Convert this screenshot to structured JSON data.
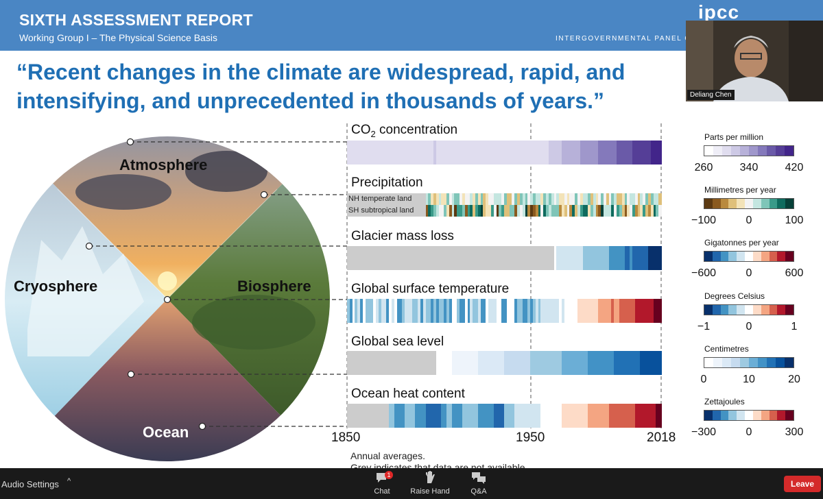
{
  "header": {
    "title": "SIXTH ASSESSMENT REPORT",
    "subtitle": "Working Group I – The Physical Science Basis",
    "logo": "ipcc",
    "org": "INTERGOVERNMENTAL PANEL ON cli"
  },
  "quote": "“Recent changes in the climate are widespread, rapid, and intensifying, and unprecedented in thousands of years.”",
  "video": {
    "participant_name": "Deliang Chen"
  },
  "circle_labels": {
    "atmosphere": "Atmosphere",
    "cryosphere": "Cryosphere",
    "biosphere": "Biosphere",
    "ocean": "Ocean"
  },
  "panels": {
    "co2_prefix": "CO",
    "co2_sub": "2",
    "co2_suffix": " concentration",
    "precipitation": "Precipitation",
    "precip_nh": "NH temperate land",
    "precip_sh": "SH subtropical land",
    "glacier": "Glacier mass loss",
    "gst": "Global surface temperature",
    "gsl": "Global sea level",
    "ohc": "Ocean heat content"
  },
  "years": {
    "start": "1850",
    "mid": "1950",
    "end": "2018"
  },
  "legends": [
    {
      "title": "Parts per million",
      "ticks": [
        "260",
        "340",
        "420"
      ],
      "colors": [
        "#ffffff",
        "#efeef7",
        "#e0ddef",
        "#cdc9e5",
        "#b7b1d9",
        "#9f97cb",
        "#8479bb",
        "#6a5aa8",
        "#553e97",
        "#42258a"
      ]
    },
    {
      "title": "Millimetres per year",
      "ticks": [
        "−100",
        "0",
        "100"
      ],
      "colors": [
        "#5c3a12",
        "#8a5a1f",
        "#b98a3e",
        "#dfc07a",
        "#f3e3b8",
        "#f3f3f3",
        "#c4e6e0",
        "#7fc5b8",
        "#3a9a89",
        "#0f6b5e",
        "#064038"
      ]
    },
    {
      "title": "Gigatonnes per year",
      "ticks": [
        "−600",
        "0",
        "600"
      ],
      "colors": [
        "#08306b",
        "#2166ac",
        "#4393c3",
        "#92c5de",
        "#d1e5f0",
        "#ffffff",
        "#fddbc7",
        "#f4a582",
        "#d6604d",
        "#b2182b",
        "#67001f"
      ]
    },
    {
      "title": "Degrees Celsius",
      "ticks": [
        "−1",
        "0",
        "1"
      ],
      "colors": [
        "#08306b",
        "#2166ac",
        "#4393c3",
        "#92c5de",
        "#d1e5f0",
        "#ffffff",
        "#fddbc7",
        "#f4a582",
        "#d6604d",
        "#b2182b",
        "#67001f"
      ]
    },
    {
      "title": "Centimetres",
      "ticks": [
        "0",
        "10",
        "20"
      ],
      "colors": [
        "#ffffff",
        "#eef4fb",
        "#dbe9f6",
        "#c6dbef",
        "#9ecae1",
        "#6baed6",
        "#4292c6",
        "#2171b5",
        "#08519c",
        "#08306b"
      ]
    },
    {
      "title": "Zettajoules",
      "ticks": [
        "−300",
        "0",
        "300"
      ],
      "colors": [
        "#08306b",
        "#2166ac",
        "#4393c3",
        "#92c5de",
        "#d1e5f0",
        "#ffffff",
        "#fddbc7",
        "#f4a582",
        "#d6604d",
        "#b2182b",
        "#67001f"
      ]
    }
  ],
  "notes": {
    "line1": "Annual averages.",
    "line2": "Grey indicates that data are not available."
  },
  "toolbar": {
    "audio_settings": "Audio Settings",
    "chat": "Chat",
    "chat_badge": "1",
    "raise_hand": "Raise Hand",
    "qa": "Q&A",
    "leave": "Leave"
  }
}
